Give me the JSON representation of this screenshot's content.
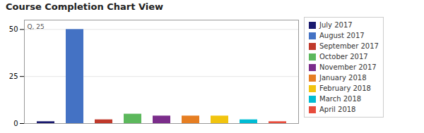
{
  "chart_data": {
    "type": "bar",
    "title": "Course Completion Chart View",
    "categories": [
      "July 2017",
      "August 2017",
      "September 2017",
      "October 2017",
      "November 2017",
      "January 2018",
      "February 2018",
      "March 2018",
      "April 2018"
    ],
    "values": [
      1,
      50,
      2,
      5,
      4,
      4,
      4,
      2,
      1
    ],
    "colors": [
      "#1a1a6e",
      "#4472c4",
      "#c0392b",
      "#5cb85c",
      "#7b2d8b",
      "#e67e22",
      "#f1c40f",
      "#00bcd4",
      "#e74c3c"
    ],
    "ylim": [
      0,
      55
    ],
    "yticks": [
      0,
      25,
      50
    ],
    "grid": true,
    "legend": "right",
    "tick_labels": "y",
    "annotations": [
      "Q, 25"
    ]
  }
}
